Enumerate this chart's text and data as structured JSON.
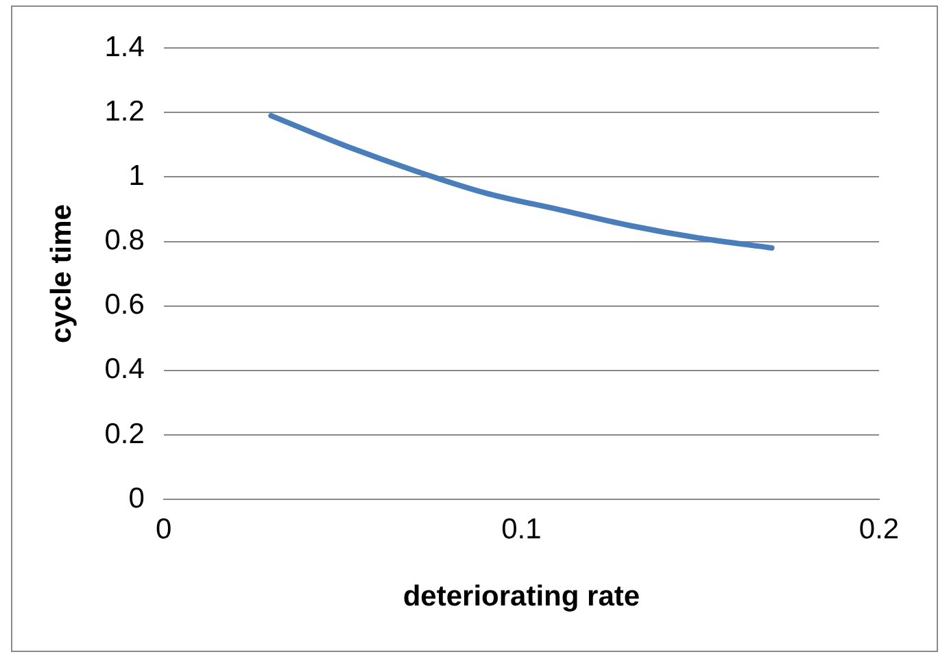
{
  "chart_data": {
    "type": "line",
    "xlabel": "deteriorating rate",
    "ylabel": "cycle time",
    "x": [
      0.03,
      0.05,
      0.07,
      0.09,
      0.11,
      0.13,
      0.15,
      0.17
    ],
    "series": [
      {
        "color": "#4a7ebb",
        "values": [
          1.19,
          1.1,
          1.02,
          0.95,
          0.9,
          0.85,
          0.81,
          0.78
        ]
      }
    ],
    "xlim": [
      0,
      0.2
    ],
    "xticks": [
      0,
      0.1,
      0.2
    ],
    "ylim": [
      0,
      1.4
    ],
    "yticks": [
      0,
      0.2,
      0.4,
      0.6,
      0.8,
      1,
      1.2,
      1.4
    ],
    "grid": "y",
    "legend": false,
    "marker": "none",
    "line_style": "solid"
  }
}
